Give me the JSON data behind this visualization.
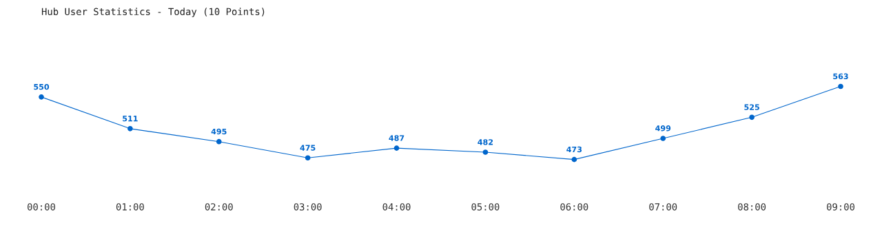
{
  "chart_data": {
    "type": "line",
    "title": "Hub User Statistics - Today (10 Points)",
    "categories": [
      "00:00",
      "01:00",
      "02:00",
      "03:00",
      "04:00",
      "05:00",
      "06:00",
      "07:00",
      "08:00",
      "09:00"
    ],
    "series": [
      {
        "color": "#0066cc",
        "values": [
          550,
          511,
          495,
          475,
          487,
          482,
          473,
          499,
          525,
          563
        ]
      }
    ],
    "data_labels": true,
    "marker": "circle",
    "line_style": "solid",
    "grid": false,
    "legend": false,
    "tick_labels": "x"
  }
}
